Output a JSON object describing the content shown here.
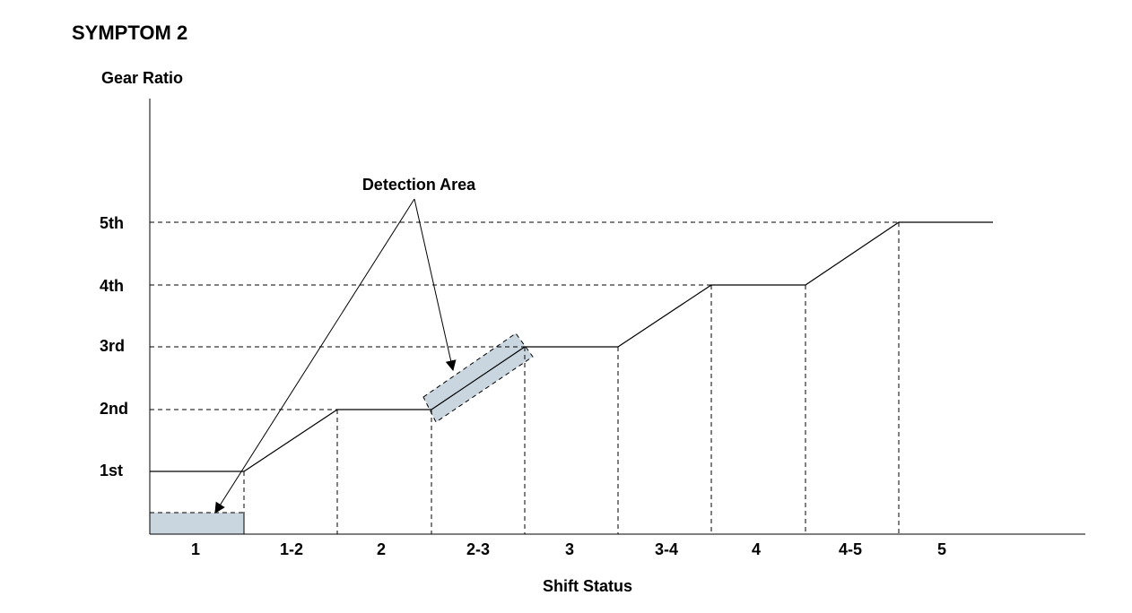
{
  "title": "SYMPTOM 2",
  "y_axis": {
    "label": "Gear Ratio",
    "levels": [
      "1st",
      "2nd",
      "3rd",
      "4th",
      "5th"
    ]
  },
  "x_axis": {
    "label": "Shift Status",
    "categories": [
      "1",
      "1-2",
      "2",
      "2-3",
      "3",
      "3-4",
      "4",
      "4-5",
      "5"
    ]
  },
  "annotation": "Detection Area"
}
